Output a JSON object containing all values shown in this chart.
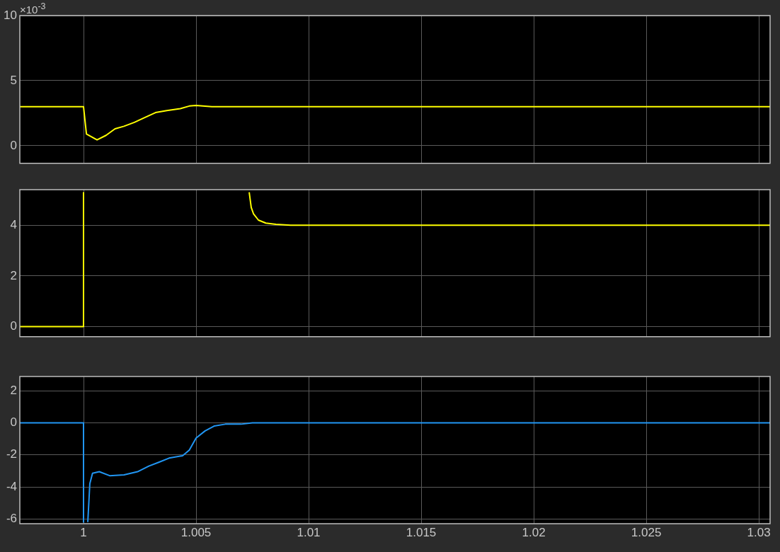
{
  "chart_data": [
    {
      "type": "line",
      "annotations": [
        "×10$^{-3}$"
      ],
      "xlim": [
        0.99717,
        1.0305
      ],
      "xticks": [
        1,
        1.005,
        1.01,
        1.015,
        1.02,
        1.025,
        1.03
      ],
      "ylim": [
        -1.35,
        10
      ],
      "yticks": [
        0,
        5,
        10
      ],
      "grid": true,
      "tick_labels": "y",
      "legend": false,
      "series": [
        {
          "color": "#ffff00",
          "x": [
            0.99717,
            1.0,
            1.00003,
            1.00013,
            1.0006,
            1.001,
            1.0014,
            1.0018,
            1.00226,
            1.0027,
            1.0032,
            1.0037,
            1.0043,
            1.0047,
            1.005,
            1.0057,
            1.007,
            1.0305
          ],
          "values": [
            3,
            3,
            3,
            0.9,
            0.45,
            0.8,
            1.3,
            1.5,
            1.8,
            2.15,
            2.55,
            2.7,
            2.85,
            3.05,
            3.1,
            3.0,
            3.0,
            3
          ]
        }
      ]
    },
    {
      "type": "line",
      "xlim": [
        0.99717,
        1.0305
      ],
      "xticks": [
        1,
        1.005,
        1.01,
        1.015,
        1.02,
        1.025,
        1.03
      ],
      "ylim": [
        -0.4,
        5.4
      ],
      "yticks": [
        0,
        2,
        4
      ],
      "grid": true,
      "tick_labels": "y",
      "legend": false,
      "series": [
        {
          "color": "#ffff00",
          "x": [
            0.99717,
            1.0,
            1.0,
            1.0037,
            1.00736,
            1.00745,
            1.00755,
            1.00777,
            1.0081,
            1.00855,
            1.0092,
            1.0305
          ],
          "values": [
            0,
            0,
            5.3,
            null,
            5.3,
            4.7,
            4.45,
            4.2,
            4.08,
            4.03,
            4.0,
            4.0
          ]
        }
      ]
    },
    {
      "type": "line",
      "xlim": [
        0.99717,
        1.0305
      ],
      "xticks": [
        1,
        1.005,
        1.01,
        1.015,
        1.02,
        1.025,
        1.03
      ],
      "ylim": [
        -6.3,
        2.9
      ],
      "yticks": [
        -6,
        -4,
        -2,
        0,
        2
      ],
      "grid": true,
      "legend": false,
      "series": [
        {
          "color": "#2196f3",
          "x": [
            0.99717,
            1.0,
            1.0,
            1.0001,
            1.00019,
            1.00028,
            1.0004,
            1.0007,
            1.00116,
            1.0018,
            1.0024,
            1.0029,
            1.00336,
            1.0038,
            1.0044,
            1.0047,
            1.005,
            1.0054,
            1.0058,
            1.0063,
            1.007,
            1.0075,
            1.0305
          ],
          "values": [
            0,
            0,
            -6.2,
            null,
            -6.2,
            -3.8,
            -3.15,
            -3.05,
            -3.3,
            -3.25,
            -3.05,
            -2.7,
            -2.45,
            -2.2,
            -2.05,
            -1.7,
            -0.95,
            -0.5,
            -0.2,
            -0.08,
            -0.08,
            0,
            0
          ]
        }
      ]
    }
  ]
}
